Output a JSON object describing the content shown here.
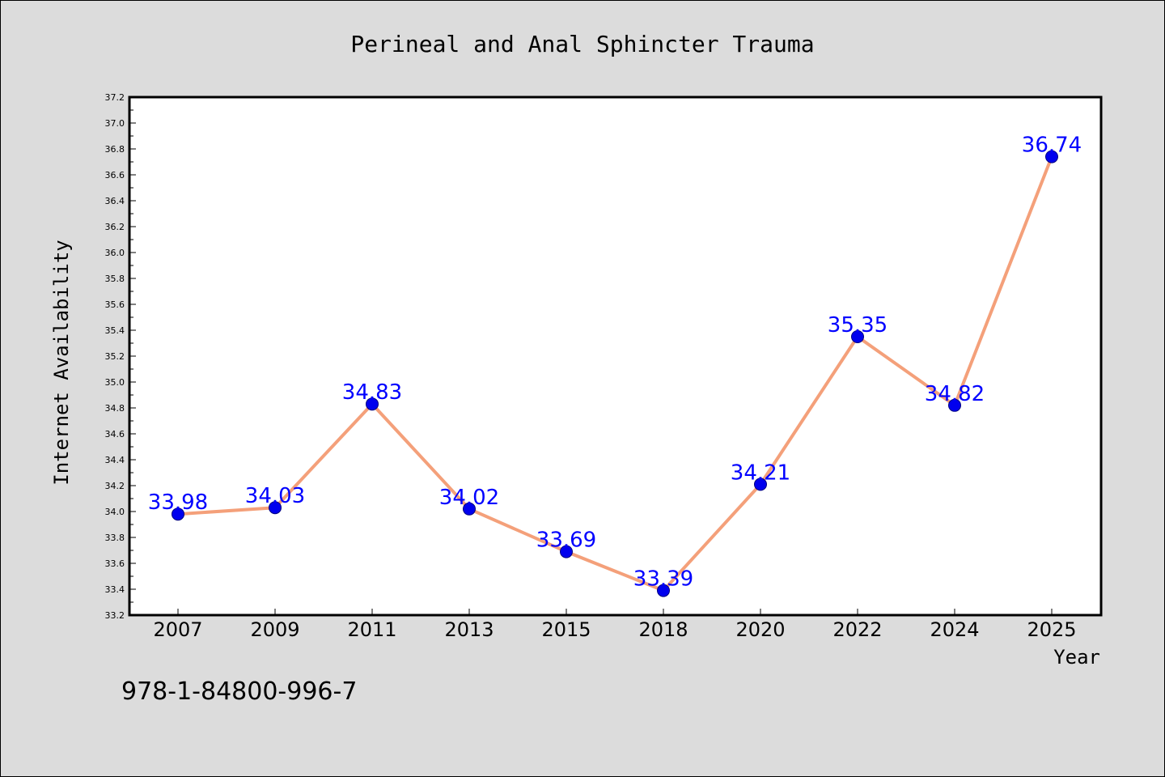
{
  "colors": {
    "background": "#dcdcdc",
    "plot_background": "#ffffff",
    "line": "#f4a07a",
    "marker": "#0000ee",
    "marker_edge": "#000080",
    "data_label": "#0000ff"
  },
  "footnote": "978-1-84800-996-7",
  "chart_data": {
    "type": "line",
    "title": "Perineal and Anal Sphincter Trauma",
    "xlabel": "Year",
    "ylabel": "Internet Availability",
    "categories": [
      "2007",
      "2009",
      "2011",
      "2013",
      "2015",
      "2018",
      "2020",
      "2022",
      "2024",
      "2025"
    ],
    "values": [
      33.98,
      34.03,
      34.83,
      34.02,
      33.69,
      33.39,
      34.21,
      35.35,
      34.82,
      36.74
    ],
    "data_labels": [
      "33.98",
      "34.03",
      "34.83",
      "34.02",
      "33.69",
      "33.39",
      "34.21",
      "35.35",
      "34.82",
      "36.74"
    ],
    "ylim": [
      33.2,
      37.2
    ],
    "yticks": [
      "33.2",
      "33.4",
      "33.6",
      "33.8",
      "34.0",
      "34.2",
      "34.4",
      "34.6",
      "34.8",
      "35.0",
      "35.2",
      "35.4",
      "35.6",
      "35.8",
      "36.0",
      "36.2",
      "36.4",
      "36.6",
      "36.8",
      "37.0",
      "37.2"
    ],
    "grid": false,
    "legend": "none"
  }
}
